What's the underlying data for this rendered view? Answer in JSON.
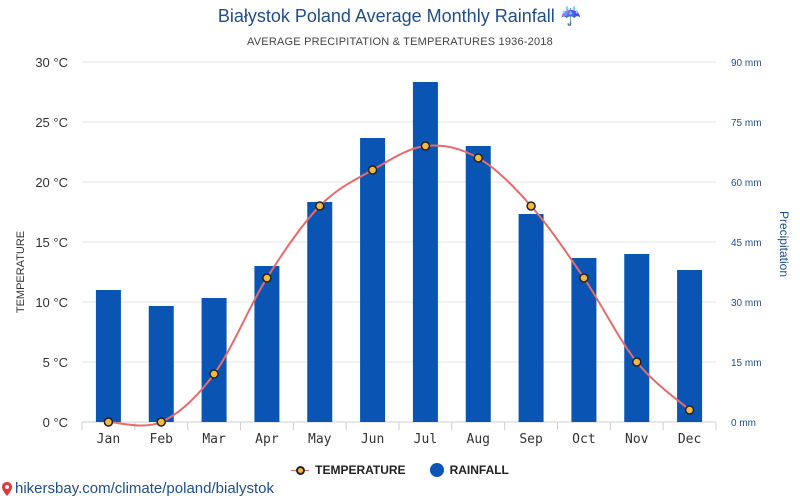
{
  "header": {
    "title": "Białystok Poland Average Monthly Rainfall ☔",
    "subtitle": "AVERAGE PRECIPITATION & TEMPERATURES 1936-2018"
  },
  "chart_data": {
    "type": "bar",
    "categories": [
      "Jan",
      "Feb",
      "Mar",
      "Apr",
      "May",
      "Jun",
      "Jul",
      "Aug",
      "Sep",
      "Oct",
      "Nov",
      "Dec"
    ],
    "series": [
      {
        "name": "RAINFALL",
        "type": "bar",
        "axis": "right",
        "unit": "mm",
        "values": [
          33,
          29,
          31,
          39,
          55,
          71,
          85,
          69,
          52,
          41,
          42,
          38
        ]
      },
      {
        "name": "TEMPERATURE",
        "type": "line",
        "axis": "left",
        "unit": "°C",
        "values": [
          0,
          0,
          4,
          12,
          18,
          21,
          23,
          22,
          18,
          12,
          5,
          1
        ]
      }
    ],
    "y_left": {
      "label": "TEMPERATURE",
      "ylim": [
        0,
        30
      ],
      "ticks": [
        "0 °C",
        "5 °C",
        "10 °C",
        "15 °C",
        "20 °C",
        "25 °C",
        "30 °C"
      ]
    },
    "y_right": {
      "label": "Precipitation",
      "ylim": [
        0,
        90
      ],
      "ticks": [
        "0 mm",
        "15 mm",
        "30 mm",
        "45 mm",
        "60 mm",
        "75 mm",
        "90 mm"
      ]
    },
    "grid": true,
    "legend_position": "bottom-center",
    "colors": {
      "rainfall": "#0a55b3",
      "temperature_line": "#e86a6a",
      "temperature_marker": "#f5b942"
    }
  },
  "legend": {
    "temperature": "TEMPERATURE",
    "rainfall": "RAINFALL"
  },
  "footer": {
    "link": "hikersbay.com/climate/poland/bialystok"
  }
}
